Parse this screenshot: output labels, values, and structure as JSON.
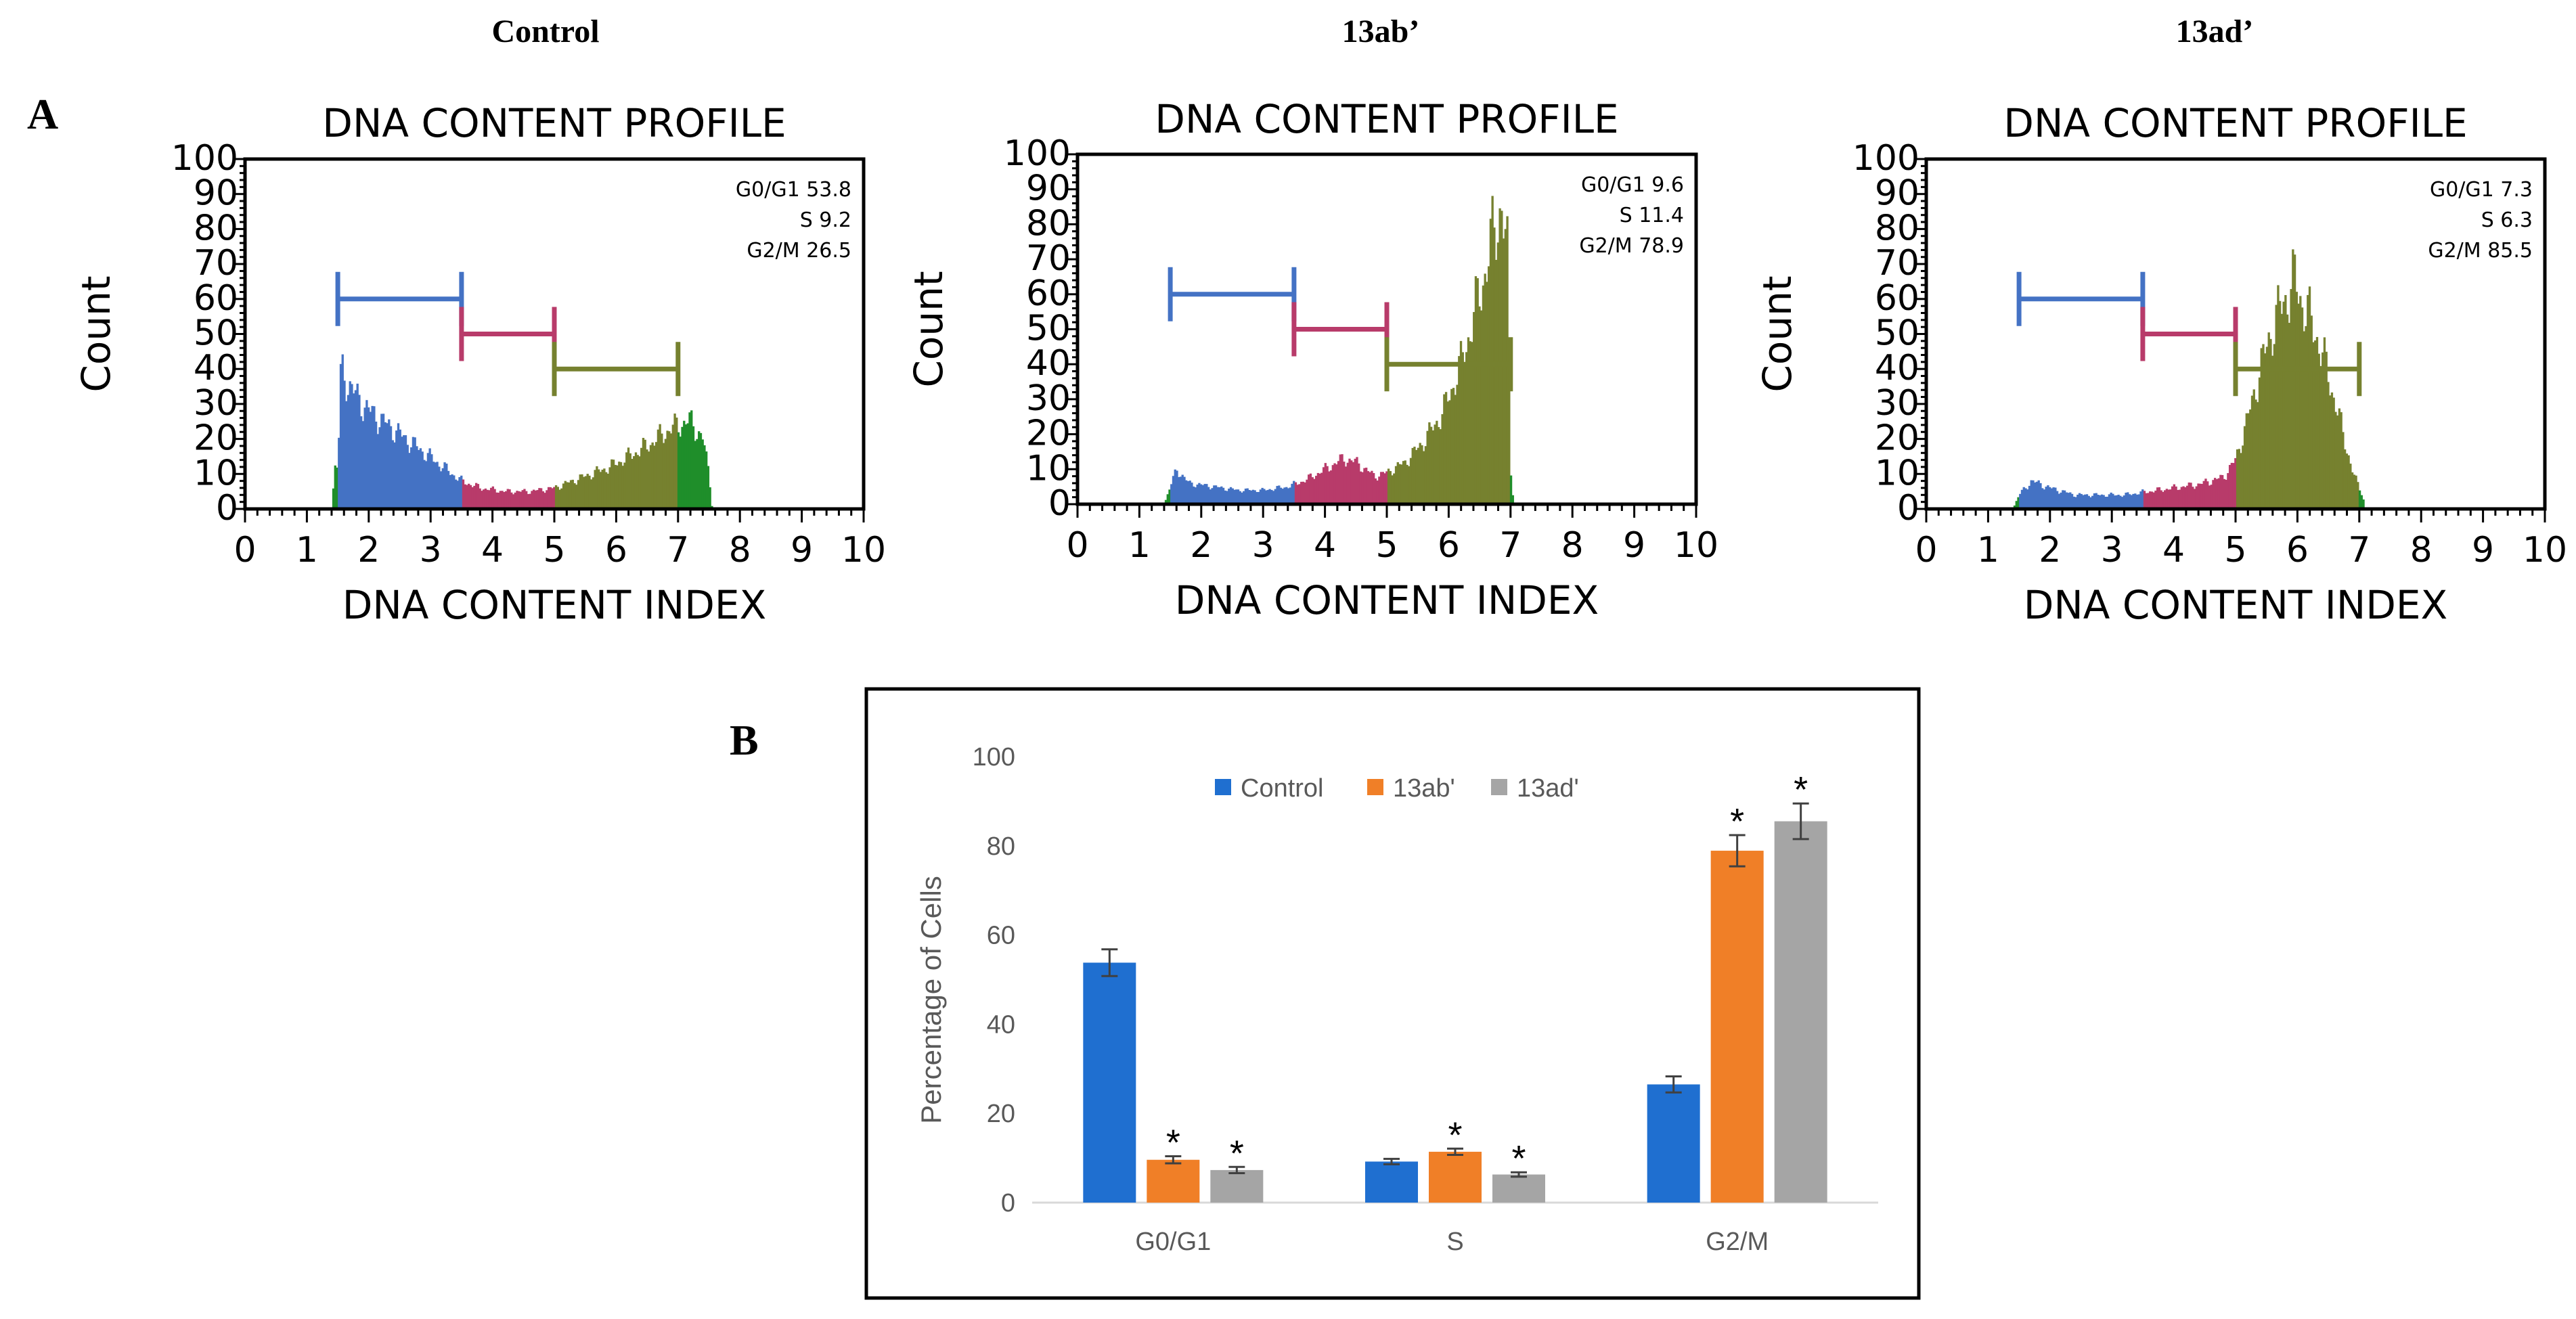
{
  "column_titles": [
    "Control",
    "13ab’",
    "13ad’"
  ],
  "panel_labels": {
    "a": "A",
    "b": "B"
  },
  "colors": {
    "g0g1": "#4472C4",
    "s": "#B83B6A",
    "g2m": "#76812F",
    "edge": "#1F8E2A",
    "bar_control": "#1F6FD0",
    "bar_13ab": "#F07F27",
    "bar_13ad": "#A5A5A5"
  },
  "chart_data": [
    {
      "type": "area",
      "title": "DNA CONTENT PROFILE",
      "sample": "Control",
      "xlabel": "DNA CONTENT INDEX",
      "ylabel": "Count",
      "xlim": [
        0,
        10
      ],
      "ylim": [
        0,
        100
      ],
      "xticks": [
        "0",
        "1",
        "2",
        "3",
        "4",
        "5",
        "6",
        "7",
        "8",
        "9",
        "10"
      ],
      "yticks": [
        "0",
        "10",
        "20",
        "30",
        "40",
        "50",
        "60",
        "70",
        "80",
        "90",
        "100"
      ],
      "stats": {
        "g0g1": "G0/G1 53.8",
        "s": "S 9.2",
        "g2m": "G2/M 26.5"
      },
      "gates": [
        {
          "phase": "g0g1",
          "start": 1.5,
          "end": 3.5,
          "level": 60
        },
        {
          "phase": "s",
          "start": 3.5,
          "end": 5.0,
          "level": 50
        },
        {
          "phase": "g2m",
          "start": 5.0,
          "end": 7.0,
          "level": 40
        }
      ],
      "profile": [
        [
          1.4,
          0
        ],
        [
          1.45,
          12
        ],
        [
          1.5,
          12
        ],
        [
          1.55,
          40
        ],
        [
          1.6,
          38
        ],
        [
          1.8,
          32
        ],
        [
          2.0,
          28
        ],
        [
          2.3,
          24
        ],
        [
          2.6,
          20
        ],
        [
          2.9,
          16
        ],
        [
          3.2,
          12
        ],
        [
          3.5,
          8
        ],
        [
          3.8,
          6
        ],
        [
          4.2,
          5
        ],
        [
          4.6,
          5
        ],
        [
          5.0,
          6
        ],
        [
          5.3,
          8
        ],
        [
          5.6,
          10
        ],
        [
          5.9,
          12
        ],
        [
          6.2,
          15
        ],
        [
          6.5,
          18
        ],
        [
          6.8,
          22
        ],
        [
          7.0,
          24
        ],
        [
          7.2,
          25
        ],
        [
          7.4,
          20
        ],
        [
          7.5,
          10
        ],
        [
          7.55,
          0
        ]
      ]
    },
    {
      "type": "area",
      "title": "DNA CONTENT PROFILE",
      "sample": "13ab’",
      "xlabel": "DNA CONTENT INDEX",
      "ylabel": "Count",
      "xlim": [
        0,
        10
      ],
      "ylim": [
        0,
        100
      ],
      "xticks": [
        "0",
        "1",
        "2",
        "3",
        "4",
        "5",
        "6",
        "7",
        "8",
        "9",
        "10"
      ],
      "yticks": [
        "0",
        "10",
        "20",
        "30",
        "40",
        "50",
        "60",
        "70",
        "80",
        "90",
        "100"
      ],
      "stats": {
        "g0g1": "G0/G1 9.6",
        "s": "S 11.4",
        "g2m": "G2/M 78.9"
      },
      "gates": [
        {
          "phase": "g0g1",
          "start": 1.5,
          "end": 3.5,
          "level": 60
        },
        {
          "phase": "s",
          "start": 3.5,
          "end": 5.0,
          "level": 50
        },
        {
          "phase": "g2m",
          "start": 5.0,
          "end": 7.0,
          "level": 40
        }
      ],
      "profile": [
        [
          1.4,
          0
        ],
        [
          1.5,
          5
        ],
        [
          1.6,
          10
        ],
        [
          1.8,
          6
        ],
        [
          2.2,
          5
        ],
        [
          2.6,
          4
        ],
        [
          3.0,
          4
        ],
        [
          3.4,
          5
        ],
        [
          3.7,
          7
        ],
        [
          4.0,
          10
        ],
        [
          4.3,
          13
        ],
        [
          4.5,
          12
        ],
        [
          4.8,
          8
        ],
        [
          5.0,
          9
        ],
        [
          5.3,
          12
        ],
        [
          5.6,
          18
        ],
        [
          5.9,
          26
        ],
        [
          6.2,
          40
        ],
        [
          6.5,
          60
        ],
        [
          6.7,
          75
        ],
        [
          6.85,
          86
        ],
        [
          6.95,
          70
        ],
        [
          7.0,
          10
        ],
        [
          7.05,
          0
        ]
      ]
    },
    {
      "type": "area",
      "title": "DNA CONTENT PROFILE",
      "sample": "13ad’",
      "xlabel": "DNA CONTENT INDEX",
      "ylabel": "Count",
      "xlim": [
        0,
        10
      ],
      "ylim": [
        0,
        100
      ],
      "xticks": [
        "0",
        "1",
        "2",
        "3",
        "4",
        "5",
        "6",
        "7",
        "8",
        "9",
        "10"
      ],
      "yticks": [
        "0",
        "10",
        "20",
        "30",
        "40",
        "50",
        "60",
        "70",
        "80",
        "90",
        "100"
      ],
      "stats": {
        "g0g1": "G0/G1 7.3",
        "s": "S 6.3",
        "g2m": "G2/M 85.5"
      },
      "gates": [
        {
          "phase": "g0g1",
          "start": 1.5,
          "end": 3.5,
          "level": 60
        },
        {
          "phase": "s",
          "start": 3.5,
          "end": 5.0,
          "level": 50
        },
        {
          "phase": "g2m",
          "start": 5.0,
          "end": 7.0,
          "level": 40
        }
      ],
      "profile": [
        [
          1.4,
          0
        ],
        [
          1.5,
          4
        ],
        [
          1.7,
          8
        ],
        [
          2.0,
          6
        ],
        [
          2.4,
          4
        ],
        [
          2.8,
          4
        ],
        [
          3.2,
          4
        ],
        [
          3.6,
          5
        ],
        [
          4.0,
          6
        ],
        [
          4.4,
          7
        ],
        [
          4.8,
          9
        ],
        [
          5.0,
          14
        ],
        [
          5.2,
          26
        ],
        [
          5.4,
          40
        ],
        [
          5.6,
          52
        ],
        [
          5.8,
          60
        ],
        [
          5.95,
          65
        ],
        [
          6.1,
          58
        ],
        [
          6.3,
          50
        ],
        [
          6.5,
          38
        ],
        [
          6.7,
          24
        ],
        [
          6.9,
          10
        ],
        [
          7.05,
          4
        ],
        [
          7.1,
          0
        ]
      ]
    },
    {
      "type": "bar",
      "categories": [
        "G0/G1",
        "S",
        "G2/M"
      ],
      "series": [
        {
          "name": "Control",
          "values": [
            53.8,
            9.2,
            26.5
          ],
          "errors": [
            3,
            0.6,
            1.8
          ],
          "stars": [
            "",
            "",
            ""
          ]
        },
        {
          "name": "13ab'",
          "values": [
            9.6,
            11.4,
            78.9
          ],
          "errors": [
            0.8,
            0.7,
            3.5
          ],
          "stars": [
            "*",
            "*",
            "*"
          ]
        },
        {
          "name": "13ad'",
          "values": [
            7.3,
            6.3,
            85.5
          ],
          "errors": [
            0.7,
            0.5,
            4
          ],
          "stars": [
            "*",
            "*",
            "*"
          ]
        }
      ],
      "ylabel": "Percentage of Cells",
      "ylim": [
        0,
        100
      ],
      "yticks": [
        "0",
        "20",
        "40",
        "60",
        "80",
        "100"
      ],
      "legend": "top-center"
    }
  ]
}
